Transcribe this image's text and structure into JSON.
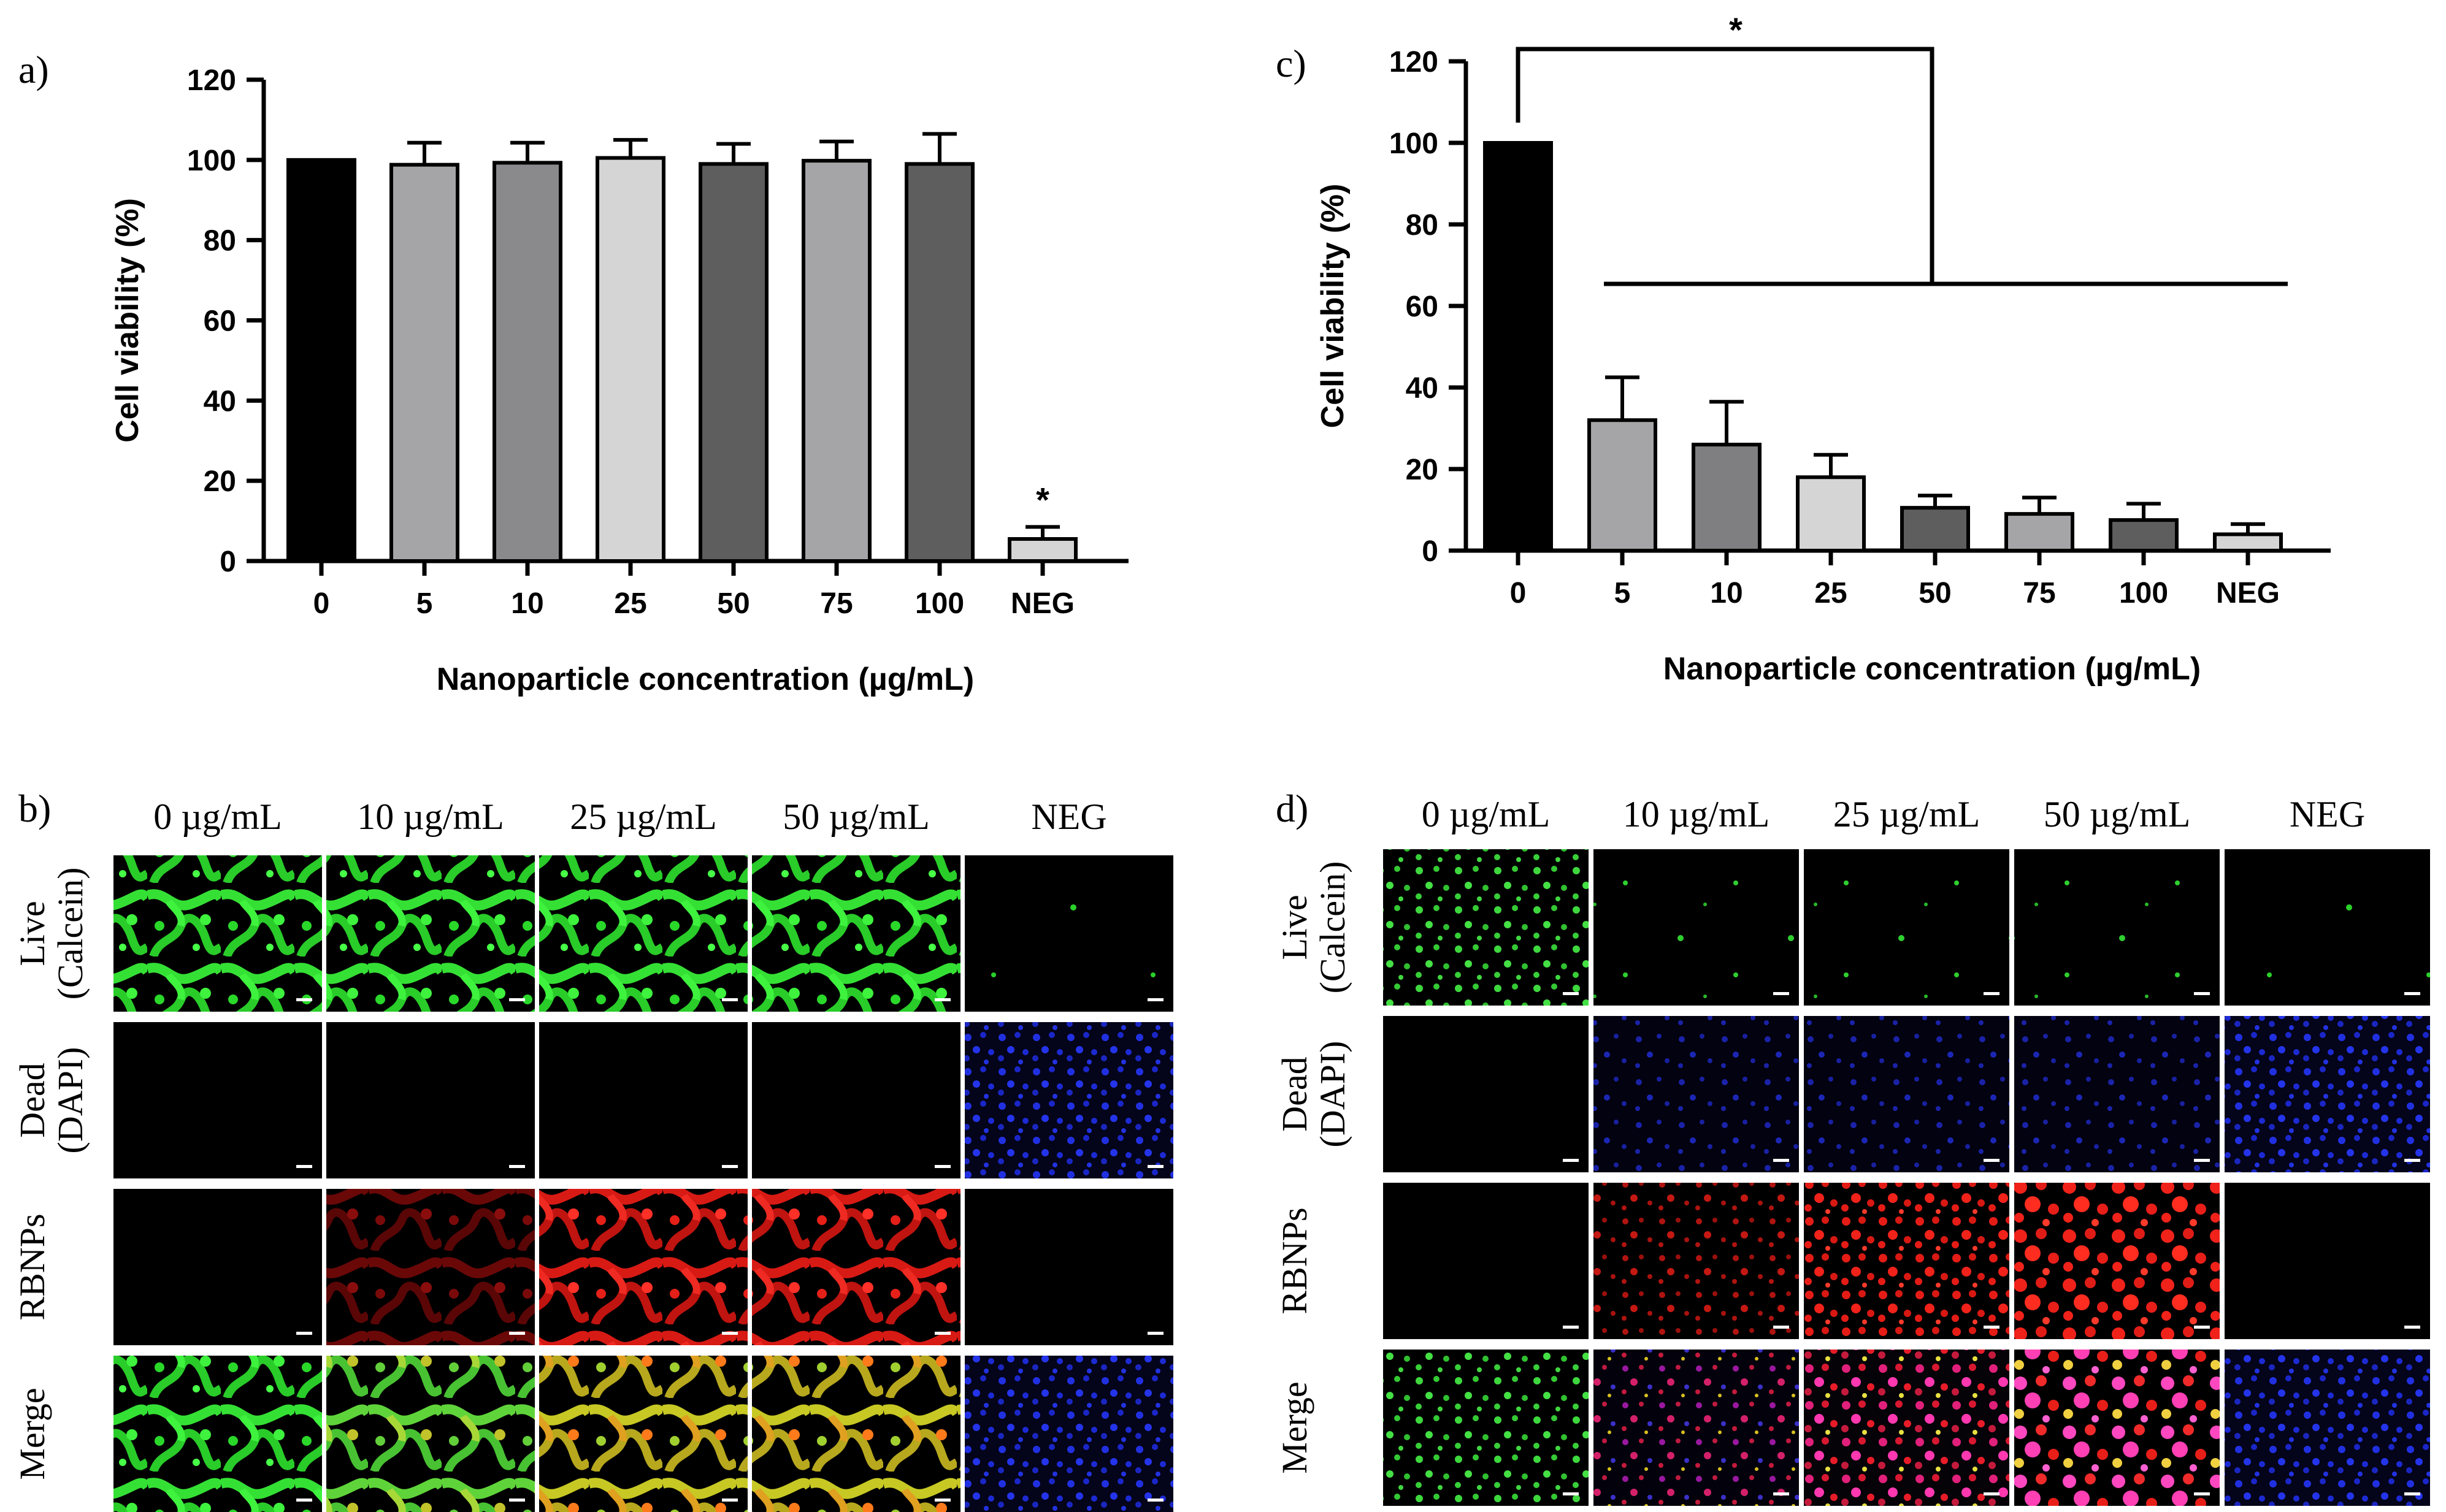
{
  "figure": {
    "panel_a_label": "a)",
    "panel_b_label": "b)",
    "panel_c_label": "c)",
    "panel_d_label": "d)"
  },
  "chart_data": [
    {
      "panel": "a",
      "type": "bar",
      "categories": [
        "0",
        "5",
        "10",
        "25",
        "50",
        "75",
        "100",
        "NEG"
      ],
      "values": [
        100,
        98.8,
        99.3,
        100.5,
        99,
        99.8,
        99,
        5.5
      ],
      "errors": [
        0,
        5.5,
        5,
        4.5,
        5,
        4.8,
        7.5,
        3
      ],
      "colors": [
        "#000000",
        "#a5a5a8",
        "#8a8a8d",
        "#d5d5d5",
        "#5e5e5e",
        "#a5a5a8",
        "#5e5e5e",
        "#d5d5d5"
      ],
      "ylim": [
        0,
        120
      ],
      "yticks": [
        "0",
        "20",
        "40",
        "60",
        "80",
        "100",
        "120"
      ],
      "ylabel": "Cell viability (%)",
      "xlabel": "Nanoparticle concentration (µg/mL)",
      "annotations": [
        {
          "category": "NEG",
          "text": "*"
        }
      ]
    },
    {
      "panel": "c",
      "type": "bar",
      "categories": [
        "0",
        "5",
        "10",
        "25",
        "50",
        "75",
        "100",
        "NEG"
      ],
      "values": [
        100,
        32,
        26,
        18,
        10.5,
        9,
        7.5,
        4
      ],
      "errors": [
        0,
        10.5,
        10.5,
        5.5,
        3,
        4,
        4,
        2.5
      ],
      "colors": [
        "#000000",
        "#a5a5a8",
        "#7f7f82",
        "#d5d5d5",
        "#5e5e5e",
        "#a5a5a8",
        "#5e5e5e",
        "#d5d5d5"
      ],
      "ylim": [
        0,
        120
      ],
      "yticks": [
        "0",
        "20",
        "40",
        "60",
        "80",
        "100",
        "120"
      ],
      "ylabel": "Cell viability (%)",
      "xlabel": "Nanoparticle concentration (µg/mL)",
      "annotations": [
        {
          "type": "bracket",
          "from": "0",
          "to": "5–NEG",
          "text": "*"
        }
      ]
    }
  ],
  "micrographs": {
    "b": {
      "columns": [
        "0 µg/mL",
        "10 µg/mL",
        "25 µg/mL",
        "50 µg/mL",
        "NEG"
      ],
      "row_titles": [
        "Live",
        "Dead",
        "RBNPs",
        "Merge"
      ],
      "row_subtitles": [
        "(Calcein)",
        "(DAPI)",
        "",
        ""
      ],
      "description_cells": [
        [
          "network",
          "network",
          "network",
          "network",
          "empty"
        ],
        [
          "black",
          "black",
          "black",
          "black",
          "dapi"
        ],
        [
          "black",
          "redDim",
          "red",
          "redBright",
          "black"
        ],
        [
          "network",
          "mergeMix",
          "mergeYellow",
          "mergeYellow",
          "dapi"
        ]
      ]
    },
    "d": {
      "columns": [
        "0 µg/mL",
        "10 µg/mL",
        "25 µg/mL",
        "50 µg/mL",
        "NEG"
      ],
      "row_titles": [
        "Live",
        "Dead",
        "RBNPs",
        "Merge"
      ],
      "row_subtitles": [
        "(Calcein)",
        "(DAPI)",
        "",
        ""
      ]
    }
  },
  "colors": {
    "live_green": "#2ee82e",
    "dapi_blue": "#1c2ad6",
    "rbnp_red": "#e8201c",
    "merge_yellow": "#d8d21e",
    "merge_magenta": "#ff3fb4"
  }
}
